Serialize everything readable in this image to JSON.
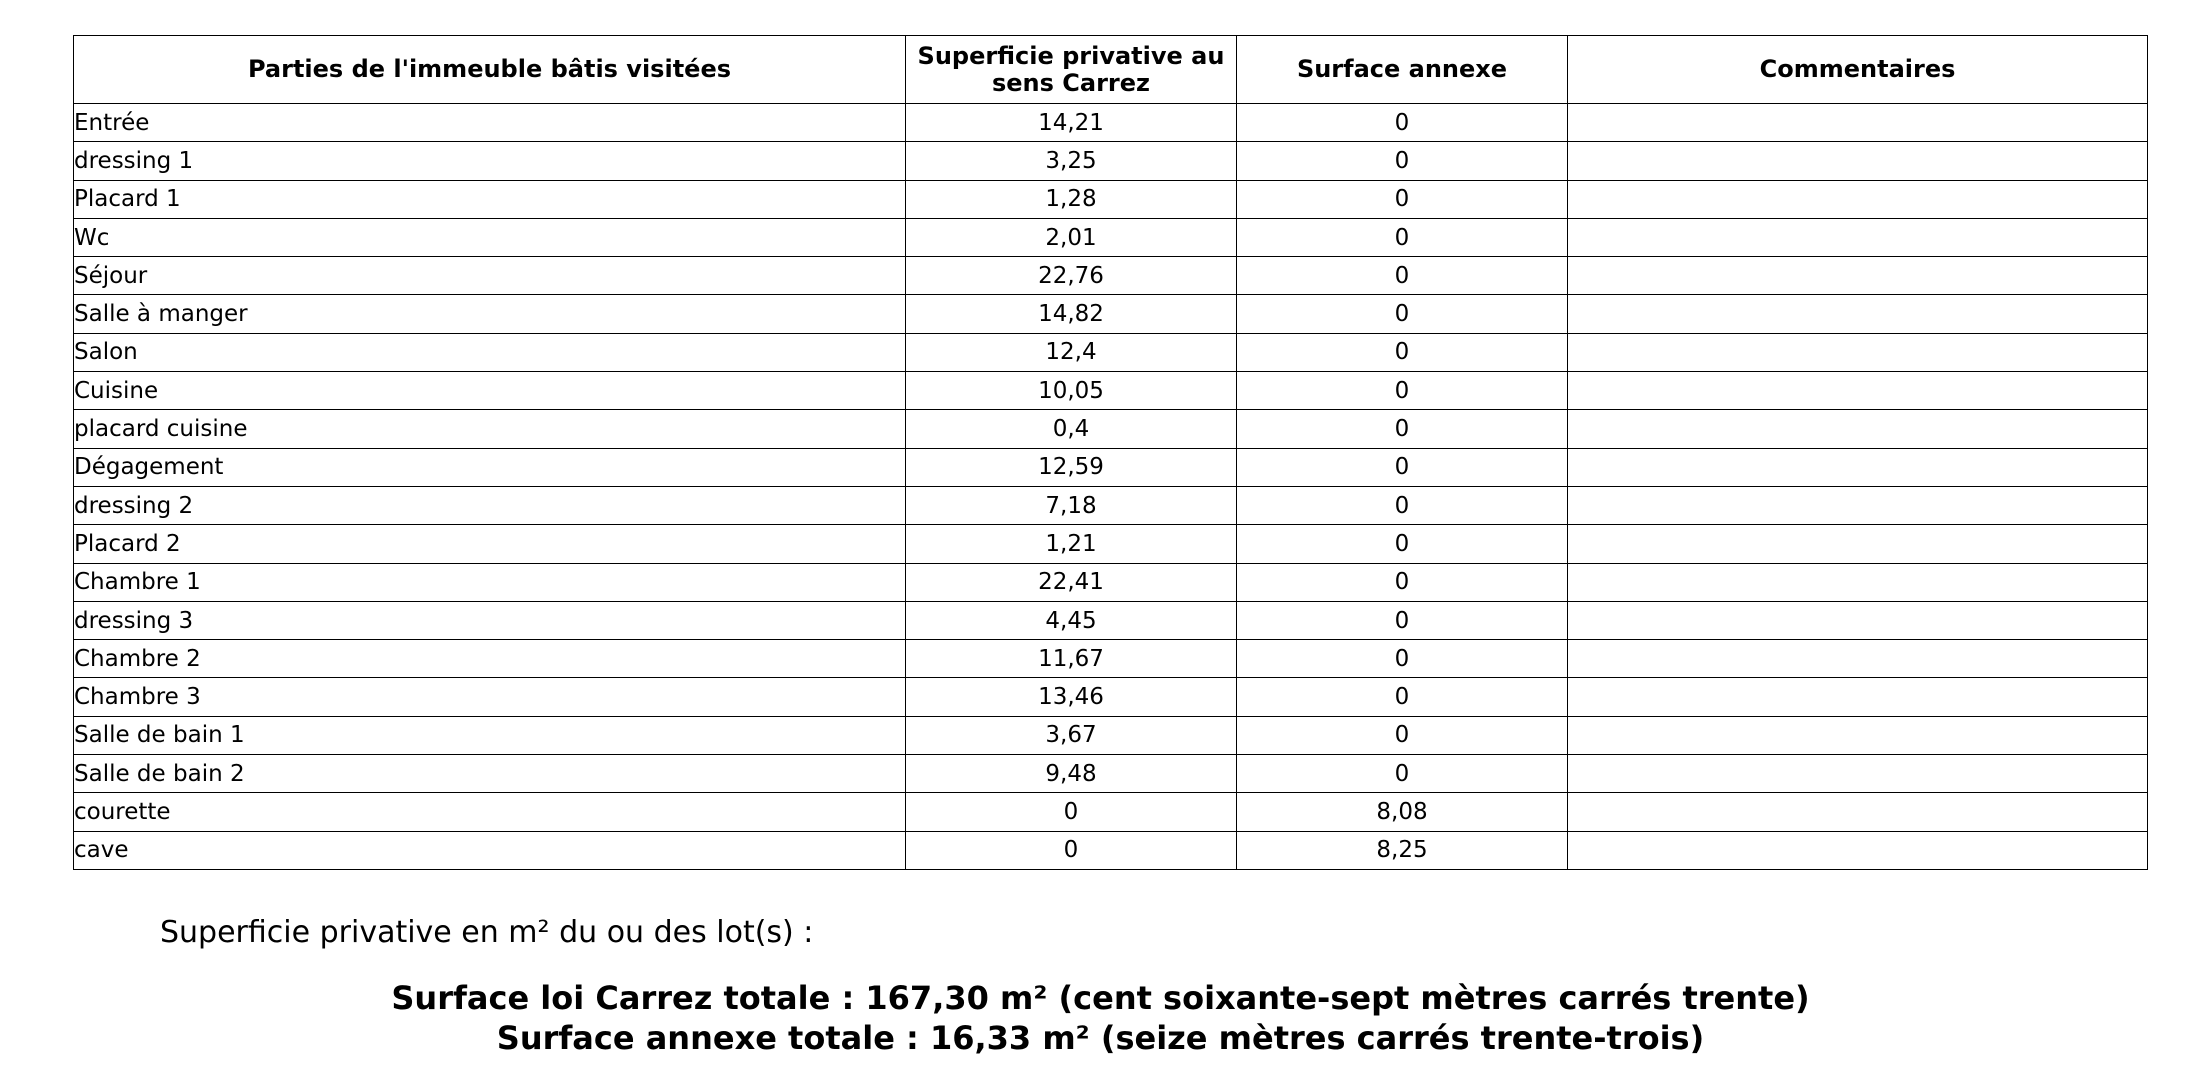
{
  "table": {
    "headers": {
      "piece": "Parties de l'immeuble bâtis visitées",
      "carrez": "Superficie privative au sens Carrez",
      "annexe": "Surface annexe",
      "commentaires": "Commentaires"
    },
    "rows": [
      {
        "piece": "Entrée",
        "carrez": "14,21",
        "annexe": "0",
        "commentaire": ""
      },
      {
        "piece": "dressing 1",
        "carrez": "3,25",
        "annexe": "0",
        "commentaire": ""
      },
      {
        "piece": "Placard 1",
        "carrez": "1,28",
        "annexe": "0",
        "commentaire": ""
      },
      {
        "piece": "Wc",
        "carrez": "2,01",
        "annexe": "0",
        "commentaire": ""
      },
      {
        "piece": "Séjour",
        "carrez": "22,76",
        "annexe": "0",
        "commentaire": ""
      },
      {
        "piece": "Salle à manger",
        "carrez": "14,82",
        "annexe": "0",
        "commentaire": ""
      },
      {
        "piece": "Salon",
        "carrez": "12,4",
        "annexe": "0",
        "commentaire": ""
      },
      {
        "piece": "Cuisine",
        "carrez": "10,05",
        "annexe": "0",
        "commentaire": ""
      },
      {
        "piece": "placard cuisine",
        "carrez": "0,4",
        "annexe": "0",
        "commentaire": ""
      },
      {
        "piece": "Dégagement",
        "carrez": "12,59",
        "annexe": "0",
        "commentaire": ""
      },
      {
        "piece": "dressing 2",
        "carrez": "7,18",
        "annexe": "0",
        "commentaire": ""
      },
      {
        "piece": "Placard 2",
        "carrez": "1,21",
        "annexe": "0",
        "commentaire": ""
      },
      {
        "piece": "Chambre 1",
        "carrez": "22,41",
        "annexe": "0",
        "commentaire": ""
      },
      {
        "piece": "dressing 3",
        "carrez": "4,45",
        "annexe": "0",
        "commentaire": ""
      },
      {
        "piece": "Chambre 2",
        "carrez": "11,67",
        "annexe": "0",
        "commentaire": ""
      },
      {
        "piece": "Chambre 3",
        "carrez": "13,46",
        "annexe": "0",
        "commentaire": ""
      },
      {
        "piece": "Salle de bain 1",
        "carrez": "3,67",
        "annexe": "0",
        "commentaire": ""
      },
      {
        "piece": "Salle de bain 2",
        "carrez": "9,48",
        "annexe": "0",
        "commentaire": ""
      },
      {
        "piece": "courette",
        "carrez": "0",
        "annexe": "8,08",
        "commentaire": ""
      },
      {
        "piece": "cave",
        "carrez": "0",
        "annexe": "8,25",
        "commentaire": ""
      }
    ]
  },
  "summary": {
    "intro": "Superficie privative en m² du ou des lot(s) :",
    "total_carrez": "Surface loi Carrez totale : 167,30 m² (cent soixante-sept mètres carrés trente)",
    "total_annexe": "Surface annexe totale : 16,33 m² (seize mètres carrés trente-trois)"
  }
}
